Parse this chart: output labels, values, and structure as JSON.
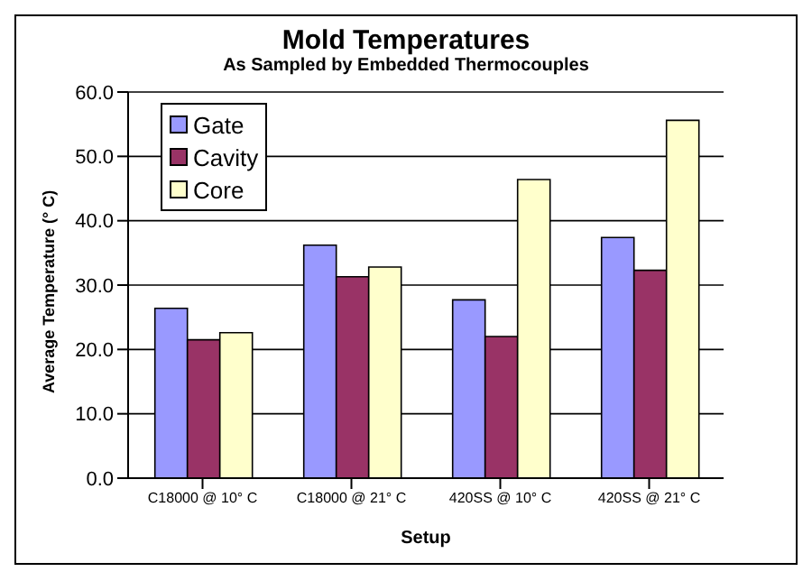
{
  "chart_data": {
    "type": "bar",
    "title": "Mold Temperatures",
    "subtitle": "As Sampled by Embedded Thermocouples",
    "xlabel": "Setup",
    "ylabel": "Average Temperature (° C)",
    "categories": [
      "C18000 @ 10° C",
      "C18000 @ 21° C",
      "420SS @ 10° C",
      "420SS @ 21° C"
    ],
    "series": [
      {
        "name": "Gate",
        "color": "#9999ff",
        "values": [
          26.4,
          36.2,
          27.7,
          37.4
        ]
      },
      {
        "name": "Cavity",
        "color": "#993366",
        "values": [
          21.5,
          31.3,
          22.0,
          32.3
        ]
      },
      {
        "name": "Core",
        "color": "#ffffcc",
        "values": [
          22.6,
          32.8,
          46.4,
          55.6
        ]
      }
    ],
    "ylim": [
      0,
      60
    ],
    "yticks": [
      {
        "value": 0,
        "label": "0.0"
      },
      {
        "value": 10,
        "label": "10.0"
      },
      {
        "value": 20,
        "label": "20.0"
      },
      {
        "value": 30,
        "label": "30.0"
      },
      {
        "value": 40,
        "label": "40.0"
      },
      {
        "value": 50,
        "label": "50.0"
      },
      {
        "value": 60,
        "label": "60.0"
      }
    ],
    "grid": "y",
    "legend": "top left"
  }
}
